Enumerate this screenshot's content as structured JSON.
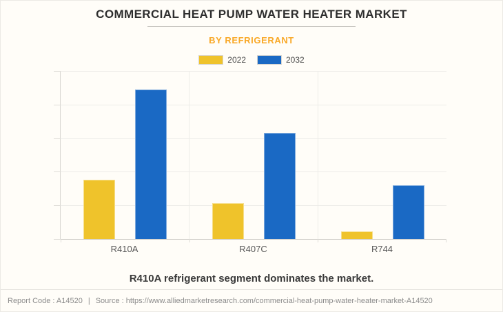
{
  "header": {
    "title": "COMMERCIAL HEAT PUMP WATER HEATER MARKET",
    "subtitle": "BY REFRIGERANT"
  },
  "legend": [
    {
      "label": "2022",
      "color": "#EFC32B"
    },
    {
      "label": "2032",
      "color": "#1A69C4"
    }
  ],
  "chart_data": {
    "type": "bar",
    "categories": [
      "R410A",
      "R407C",
      "R744"
    ],
    "series": [
      {
        "name": "2022",
        "color": "#EFC32B",
        "values": [
          1.76,
          1.06,
          0.22
        ]
      },
      {
        "name": "2032",
        "color": "#1A69C4",
        "values": [
          4.45,
          3.16,
          1.59
        ]
      }
    ],
    "title": "COMMERCIAL HEAT PUMP WATER HEATER MARKET",
    "subtitle": "BY REFRIGERANT",
    "xlabel": "",
    "ylabel": "",
    "ylim": [
      0,
      5
    ],
    "y_tick_step": 1,
    "y_tick_labels_visible": false,
    "grid": true,
    "legend_position": "top"
  },
  "note": "R410A refrigerant segment dominates the market.",
  "footer": {
    "report_code": "Report Code : A14520",
    "separator": "|",
    "source": "Source : https://www.alliedmarketresearch.com/commercial-heat-pump-water-heater-market-A14520"
  },
  "colors": {
    "background": "#FFFDF8",
    "accent_orange": "#F9A826",
    "bar_2022": "#EFC32B",
    "bar_2032": "#1A69C4",
    "gridline": "#EDECE8"
  }
}
